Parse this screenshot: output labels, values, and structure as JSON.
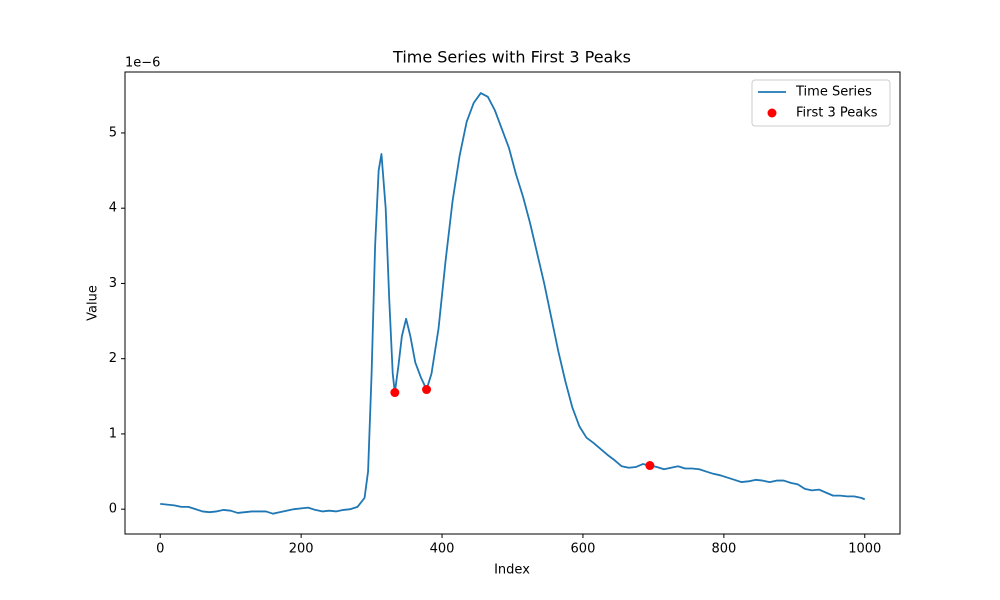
{
  "chart_data": {
    "type": "line",
    "title": "Time Series with First 3 Peaks",
    "xlabel": "Index",
    "ylabel": "Value",
    "y_offset_label": "1e−6",
    "xlim": [
      -50,
      1050
    ],
    "ylim": [
      -0.33,
      5.81
    ],
    "xticks": [
      0,
      200,
      400,
      600,
      800,
      1000
    ],
    "yticks": [
      0,
      1,
      2,
      3,
      4,
      5
    ],
    "legend": "upper right",
    "series": [
      {
        "name": "Time Series",
        "type": "line",
        "color": "#1f77b4",
        "x": [
          0,
          10,
          20,
          30,
          40,
          50,
          60,
          70,
          80,
          90,
          100,
          110,
          120,
          130,
          140,
          150,
          160,
          170,
          180,
          190,
          200,
          210,
          220,
          230,
          240,
          250,
          260,
          270,
          280,
          290,
          295,
          300,
          305,
          310,
          314,
          320,
          325,
          330,
          333,
          338,
          343,
          349,
          355,
          362,
          370,
          378,
          385,
          395,
          405,
          415,
          425,
          435,
          445,
          455,
          465,
          475,
          485,
          495,
          505,
          515,
          525,
          535,
          545,
          555,
          565,
          575,
          585,
          595,
          605,
          615,
          625,
          635,
          645,
          655,
          665,
          675,
          685,
          695,
          705,
          715,
          725,
          735,
          745,
          755,
          765,
          775,
          785,
          795,
          805,
          815,
          825,
          835,
          845,
          855,
          865,
          875,
          885,
          895,
          905,
          915,
          925,
          935,
          945,
          955,
          965,
          975,
          985,
          995,
          1000
        ],
        "values": [
          0.07,
          0.06,
          0.05,
          0.03,
          0.03,
          0.0,
          -0.03,
          -0.04,
          -0.03,
          -0.01,
          -0.02,
          -0.05,
          -0.04,
          -0.03,
          -0.03,
          -0.03,
          -0.06,
          -0.04,
          -0.02,
          0.0,
          0.01,
          0.02,
          -0.01,
          -0.03,
          -0.02,
          -0.03,
          -0.01,
          0.0,
          0.03,
          0.15,
          0.5,
          1.8,
          3.5,
          4.5,
          4.72,
          4.0,
          2.8,
          1.8,
          1.55,
          1.9,
          2.3,
          2.53,
          2.3,
          1.95,
          1.75,
          1.59,
          1.8,
          2.4,
          3.3,
          4.1,
          4.7,
          5.15,
          5.4,
          5.53,
          5.48,
          5.3,
          5.05,
          4.8,
          4.45,
          4.15,
          3.8,
          3.4,
          3.0,
          2.55,
          2.1,
          1.7,
          1.35,
          1.1,
          0.95,
          0.88,
          0.8,
          0.72,
          0.65,
          0.57,
          0.55,
          0.56,
          0.6,
          0.58,
          0.56,
          0.53,
          0.55,
          0.57,
          0.54,
          0.54,
          0.53,
          0.5,
          0.47,
          0.45,
          0.42,
          0.39,
          0.36,
          0.37,
          0.39,
          0.38,
          0.36,
          0.38,
          0.38,
          0.35,
          0.33,
          0.27,
          0.25,
          0.26,
          0.22,
          0.18,
          0.18,
          0.17,
          0.17,
          0.15,
          0.13
        ]
      },
      {
        "name": "First 3 Peaks",
        "type": "scatter",
        "color": "red",
        "x": [
          333,
          378,
          695
        ],
        "values": [
          1.55,
          1.59,
          0.58
        ]
      }
    ]
  }
}
